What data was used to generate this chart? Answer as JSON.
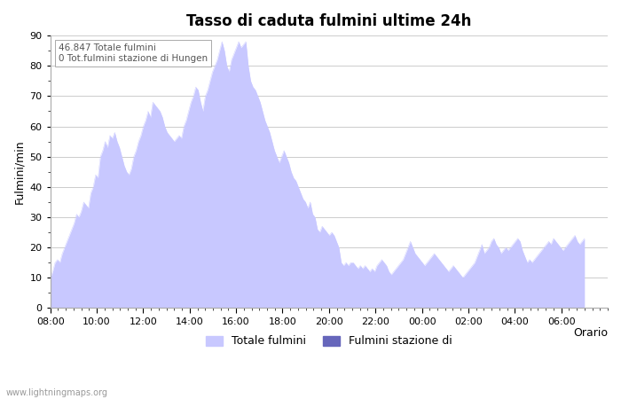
{
  "title": "Tasso di caduta fulmini ultime 24h",
  "xlabel": "Orario",
  "ylabel": "Fulmini/min",
  "ylim": [
    0,
    90
  ],
  "yticks": [
    0,
    10,
    20,
    30,
    40,
    50,
    60,
    70,
    80,
    90
  ],
  "annotation_line1": "46.847 Totale fulmini",
  "annotation_line2": "0 Tot.fulmini stazione di Hungen",
  "legend_label1": "Totale fulmini",
  "legend_label2": "Fulmini stazione di",
  "fill_color": "#c8c8ff",
  "fill_color2": "#6666bb",
  "watermark": "www.lightningmaps.org",
  "x_labels": [
    "08:00",
    "10:00",
    "12:00",
    "14:00",
    "16:00",
    "18:00",
    "20:00",
    "22:00",
    "00:00",
    "02:00",
    "04:00",
    "06:00"
  ],
  "values": [
    10,
    12,
    15,
    16,
    15,
    18,
    20,
    22,
    24,
    26,
    28,
    31,
    30,
    32,
    35,
    34,
    33,
    38,
    40,
    44,
    43,
    50,
    52,
    55,
    53,
    57,
    56,
    58,
    55,
    53,
    50,
    47,
    45,
    44,
    46,
    50,
    52,
    55,
    57,
    60,
    62,
    65,
    63,
    68,
    67,
    66,
    65,
    63,
    60,
    58,
    57,
    56,
    55,
    56,
    57,
    56,
    60,
    62,
    65,
    68,
    70,
    73,
    72,
    68,
    65,
    70,
    72,
    75,
    78,
    80,
    82,
    85,
    88,
    85,
    80,
    78,
    82,
    84,
    86,
    88,
    86,
    87,
    88,
    80,
    75,
    73,
    72,
    70,
    68,
    65,
    62,
    60,
    58,
    55,
    52,
    50,
    48,
    50,
    52,
    50,
    48,
    45,
    43,
    42,
    40,
    38,
    36,
    35,
    33,
    35,
    31,
    30,
    26,
    25,
    27,
    26,
    25,
    24,
    25,
    24,
    22,
    20,
    15,
    14,
    15,
    14,
    15,
    15,
    14,
    13,
    14,
    13,
    14,
    13,
    12,
    13,
    12,
    14,
    15,
    16,
    15,
    14,
    12,
    11,
    12,
    13,
    14,
    15,
    16,
    18,
    20,
    22,
    20,
    18,
    17,
    16,
    15,
    14,
    15,
    16,
    17,
    18,
    17,
    16,
    15,
    14,
    13,
    12,
    13,
    14,
    13,
    12,
    11,
    10,
    11,
    12,
    13,
    14,
    15,
    17,
    19,
    21,
    18,
    19,
    20,
    22,
    23,
    21,
    20,
    18,
    19,
    20,
    19,
    20,
    21,
    22,
    23,
    22,
    19,
    17,
    15,
    16,
    15,
    16,
    17,
    18,
    19,
    20,
    21,
    22,
    21,
    23,
    22,
    21,
    20,
    19,
    20,
    21,
    22,
    23,
    24,
    22,
    21,
    22,
    23
  ]
}
